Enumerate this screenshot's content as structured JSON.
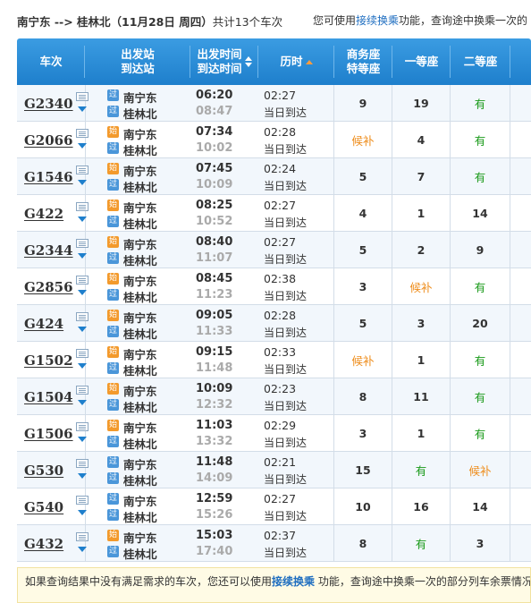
{
  "header": {
    "route": "南宁东 --> 桂林北（11月28日  周四）",
    "count": "共计13个车次",
    "tip_prefix": "您可使用",
    "tip_link": "接续换乘",
    "tip_suffix": "功能，查询途中换乘一次的"
  },
  "columns": {
    "train": "车次",
    "station_a": "出发站",
    "station_b": "到达站",
    "time_a": "出发时间",
    "time_b": "到达时间",
    "duration": "历时",
    "biz_a": "商务座",
    "biz_b": "特等座",
    "first": "一等座",
    "second": "二等座"
  },
  "trains": [
    {
      "no": "G2340",
      "from_badge": "过",
      "from": "南宁东",
      "to_badge": "过",
      "to": "桂林北",
      "dep": "06:20",
      "arr": "08:47",
      "dur": "02:27",
      "day": "当日到达",
      "biz": "9",
      "first": "19",
      "second": "有"
    },
    {
      "no": "G2066",
      "from_badge": "始",
      "from": "南宁东",
      "to_badge": "过",
      "to": "桂林北",
      "dep": "07:34",
      "arr": "10:02",
      "dur": "02:28",
      "day": "当日到达",
      "biz": "候补",
      "first": "4",
      "second": "有"
    },
    {
      "no": "G1546",
      "from_badge": "始",
      "from": "南宁东",
      "to_badge": "过",
      "to": "桂林北",
      "dep": "07:45",
      "arr": "10:09",
      "dur": "02:24",
      "day": "当日到达",
      "biz": "5",
      "first": "7",
      "second": "有"
    },
    {
      "no": "G422",
      "from_badge": "始",
      "from": "南宁东",
      "to_badge": "过",
      "to": "桂林北",
      "dep": "08:25",
      "arr": "10:52",
      "dur": "02:27",
      "day": "当日到达",
      "biz": "4",
      "first": "1",
      "second": "14"
    },
    {
      "no": "G2344",
      "from_badge": "始",
      "from": "南宁东",
      "to_badge": "过",
      "to": "桂林北",
      "dep": "08:40",
      "arr": "11:07",
      "dur": "02:27",
      "day": "当日到达",
      "biz": "5",
      "first": "2",
      "second": "9"
    },
    {
      "no": "G2856",
      "from_badge": "始",
      "from": "南宁东",
      "to_badge": "过",
      "to": "桂林北",
      "dep": "08:45",
      "arr": "11:23",
      "dur": "02:38",
      "day": "当日到达",
      "biz": "3",
      "first": "候补",
      "second": "有"
    },
    {
      "no": "G424",
      "from_badge": "始",
      "from": "南宁东",
      "to_badge": "过",
      "to": "桂林北",
      "dep": "09:05",
      "arr": "11:33",
      "dur": "02:28",
      "day": "当日到达",
      "biz": "5",
      "first": "3",
      "second": "20"
    },
    {
      "no": "G1502",
      "from_badge": "始",
      "from": "南宁东",
      "to_badge": "过",
      "to": "桂林北",
      "dep": "09:15",
      "arr": "11:48",
      "dur": "02:33",
      "day": "当日到达",
      "biz": "候补",
      "first": "1",
      "second": "有"
    },
    {
      "no": "G1504",
      "from_badge": "始",
      "from": "南宁东",
      "to_badge": "过",
      "to": "桂林北",
      "dep": "10:09",
      "arr": "12:32",
      "dur": "02:23",
      "day": "当日到达",
      "biz": "8",
      "first": "11",
      "second": "有"
    },
    {
      "no": "G1506",
      "from_badge": "始",
      "from": "南宁东",
      "to_badge": "过",
      "to": "桂林北",
      "dep": "11:03",
      "arr": "13:32",
      "dur": "02:29",
      "day": "当日到达",
      "biz": "3",
      "first": "1",
      "second": "有"
    },
    {
      "no": "G530",
      "from_badge": "过",
      "from": "南宁东",
      "to_badge": "过",
      "to": "桂林北",
      "dep": "11:48",
      "arr": "14:09",
      "dur": "02:21",
      "day": "当日到达",
      "biz": "15",
      "first": "有",
      "second": "候补"
    },
    {
      "no": "G540",
      "from_badge": "过",
      "from": "南宁东",
      "to_badge": "过",
      "to": "桂林北",
      "dep": "12:59",
      "arr": "15:26",
      "dur": "02:27",
      "day": "当日到达",
      "biz": "10",
      "first": "16",
      "second": "14"
    },
    {
      "no": "G432",
      "from_badge": "始",
      "from": "南宁东",
      "to_badge": "过",
      "to": "桂林北",
      "dep": "15:03",
      "arr": "17:40",
      "dur": "02:37",
      "day": "当日到达",
      "biz": "8",
      "first": "有",
      "second": "3"
    }
  ],
  "footer": {
    "line1_prefix": "如果查询结果中没有满足需求的车次，您还可以使用",
    "line1_link": "接续换乘",
    "line1_suffix": " 功能，查询途中换乘一次的部分列车余票情况",
    "line2": "。"
  },
  "colors": {
    "header_blue": "#1e7fcc",
    "green": "#1a9a1a",
    "orange": "#ee8c1a",
    "link": "#1f6ec0"
  }
}
